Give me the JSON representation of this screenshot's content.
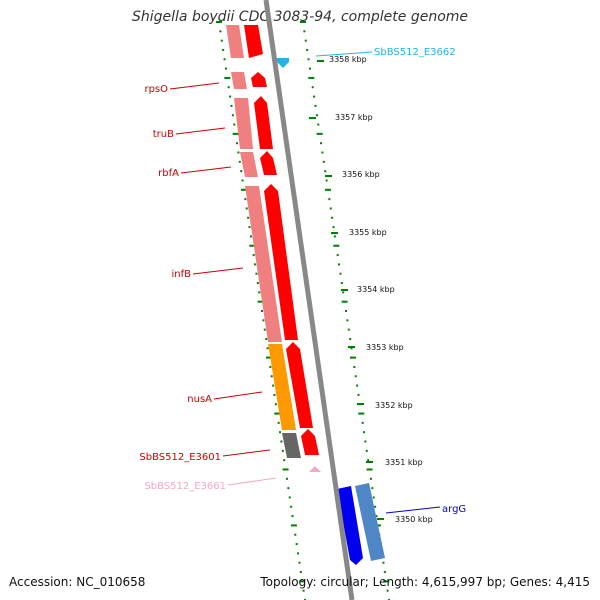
{
  "title": "Shigella boydii CDC 3083-94, complete genome",
  "footer": {
    "accession": "Accession: NC_010658",
    "summary": "Topology: circular; Length: 4,615,997 bp; Genes: 4,415"
  },
  "colors": {
    "cds_forward": "#ff0000",
    "cds_forward_light": "#f08080",
    "orange_feature": "#ff9900",
    "gray_feature": "#666666",
    "pink_feature": "#f4a6c8",
    "blue_feature": "#0000ee",
    "steelblue_feature": "#4f86c6",
    "cyan_feature": "#1eb4e6",
    "backbone": "#888888",
    "tick_green": "#008000"
  },
  "kbp_ticks": [
    "3358 kbp",
    "3357 kbp",
    "3356 kbp",
    "3355 kbp",
    "3354 kbp",
    "3353 kbp",
    "3352 kbp",
    "3351 kbp",
    "3350 kbp"
  ],
  "gene_labels": [
    {
      "text": "SbBS512_E3662",
      "color": "#1eb4e6"
    },
    {
      "text": "rpsO",
      "color": "#cc0000"
    },
    {
      "text": "truB",
      "color": "#cc0000"
    },
    {
      "text": "rbfA",
      "color": "#cc0000"
    },
    {
      "text": "infB",
      "color": "#cc0000"
    },
    {
      "text": "nusA",
      "color": "#cc0000"
    },
    {
      "text": "SbBS512_E3601",
      "color": "#cc0000"
    },
    {
      "text": "SbBS512_E3661",
      "color": "#f4a6c8"
    },
    {
      "text": "argG",
      "color": "#0000cc"
    }
  ]
}
